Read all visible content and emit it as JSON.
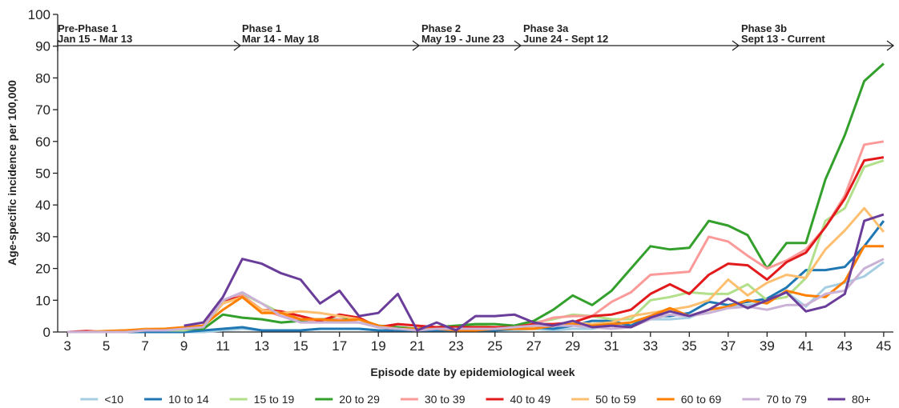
{
  "chart_data": {
    "type": "line",
    "x_label": "Episode date by epidemiological week",
    "y_label": "Age-specific incidence per 100,000",
    "annotations": [
      {
        "name": "Pre-Phase 1",
        "dates": "Jan 15 - Mar 13"
      },
      {
        "name": "Phase 1",
        "dates": "Mar 14 - May 18"
      },
      {
        "name": "Phase 2",
        "dates": "May 19 - June 23"
      },
      {
        "name": "Phase 3a",
        "dates": "June 24 - Sept 12"
      },
      {
        "name": "Phase 3b",
        "dates": "Sept 13 - Current"
      }
    ],
    "x": [
      3,
      4,
      5,
      6,
      7,
      8,
      9,
      10,
      11,
      12,
      13,
      14,
      15,
      16,
      17,
      18,
      19,
      20,
      21,
      22,
      23,
      24,
      25,
      26,
      27,
      28,
      29,
      30,
      31,
      32,
      33,
      34,
      35,
      36,
      37,
      38,
      39,
      40,
      41,
      42,
      43,
      44,
      45
    ],
    "xlim": [
      2.5,
      45.5
    ],
    "xticks": [
      3,
      5,
      7,
      9,
      11,
      13,
      15,
      17,
      19,
      21,
      23,
      25,
      27,
      29,
      31,
      33,
      35,
      37,
      39,
      41,
      43,
      45
    ],
    "ylim": [
      0,
      100
    ],
    "yticks": [
      0,
      10,
      20,
      30,
      40,
      50,
      60,
      70,
      80,
      90,
      100
    ],
    "series": [
      {
        "name": "<10",
        "color": "#a6cee3",
        "values": [
          0,
          0,
          0,
          0,
          0,
          0,
          0,
          0,
          0.5,
          1,
          0.5,
          0.5,
          0.5,
          1,
          1,
          1,
          0.5,
          0.5,
          0.5,
          0.5,
          0.5,
          0.5,
          0.5,
          0.5,
          1,
          0.5,
          1,
          1,
          2,
          2,
          4,
          4,
          4.5,
          7,
          8,
          8.5,
          9.5,
          12.5,
          8,
          14,
          15.5,
          17.5,
          22
        ]
      },
      {
        "name": "10 to 14",
        "color": "#1f78b4",
        "values": [
          0,
          0,
          0,
          0,
          0,
          0,
          0,
          0.5,
          1,
          1.5,
          0.5,
          0.5,
          0.5,
          1,
          1,
          1,
          0.5,
          0.5,
          0.5,
          0.5,
          0.5,
          0.5,
          0.5,
          1,
          1.5,
          1,
          2,
          3.5,
          3.5,
          2,
          5,
          5,
          6,
          9.5,
          8.5,
          9.5,
          10.5,
          14,
          19.5,
          19.5,
          20.5,
          27,
          35
        ]
      },
      {
        "name": "15 to 19",
        "color": "#b2df8a",
        "values": [
          0,
          0,
          0,
          0,
          0.5,
          0.5,
          0.5,
          1.5,
          9,
          12,
          9,
          6,
          4,
          4,
          3,
          3,
          1.5,
          1,
          1,
          1.5,
          2,
          2,
          1.5,
          1.5,
          3,
          4,
          5.5,
          5,
          4,
          4,
          10,
          11,
          12.5,
          12,
          12,
          15,
          10,
          11,
          17,
          35,
          39,
          52,
          54
        ]
      },
      {
        "name": "20 to 29",
        "color": "#33a02c",
        "values": [
          0,
          0,
          0,
          0.2,
          0.5,
          1,
          1,
          1,
          5.5,
          4.5,
          4,
          3,
          3.5,
          4,
          4,
          4,
          2,
          1.5,
          1,
          1.5,
          2,
          2.5,
          2.5,
          2,
          3.5,
          7,
          11.5,
          8.5,
          13,
          20,
          27,
          26,
          26.5,
          35,
          33.5,
          30.5,
          20,
          28,
          28,
          48,
          62,
          79,
          84.5
        ]
      },
      {
        "name": "30 to 39",
        "color": "#fb9a99",
        "values": [
          0,
          0,
          0,
          0.5,
          0.5,
          1,
          1,
          2,
          10,
          11.5,
          7,
          5,
          4,
          3.5,
          4,
          3,
          1.5,
          1,
          1,
          1,
          1,
          1,
          1,
          1.5,
          2.5,
          4.5,
          5,
          5,
          9.5,
          12.5,
          18,
          18.5,
          19,
          30,
          28.5,
          24,
          20,
          22.5,
          26,
          33,
          43,
          59,
          60
        ]
      },
      {
        "name": "40 to 49",
        "color": "#e31a1c",
        "values": [
          0,
          0.3,
          0,
          0.3,
          0.5,
          1,
          1,
          2,
          10,
          11,
          7,
          6.5,
          5,
          3.5,
          5.5,
          4.5,
          1.5,
          2.5,
          2,
          1.5,
          1.5,
          1.5,
          1.5,
          1.5,
          2.5,
          2.5,
          3,
          5,
          5.5,
          7,
          12,
          15,
          12,
          18,
          21.5,
          21,
          16.5,
          22,
          25,
          33,
          42,
          54,
          55
        ]
      },
      {
        "name": "50 to 59",
        "color": "#fdbf6f",
        "values": [
          0,
          0,
          0.3,
          0.5,
          1,
          1,
          1,
          2,
          9,
          11,
          7,
          6,
          6.5,
          6,
          5,
          4,
          1.5,
          1,
          1,
          1,
          1,
          1,
          1,
          1,
          1.5,
          2,
          3,
          2.5,
          3,
          5,
          6,
          7,
          8,
          10,
          16.5,
          11.5,
          15.5,
          18,
          17,
          26,
          32,
          39,
          31.5
        ]
      },
      {
        "name": "60 to 69",
        "color": "#ff7f00",
        "values": [
          0,
          0,
          0.3,
          0.5,
          0.8,
          1,
          1.5,
          2,
          7,
          11,
          6,
          6,
          4,
          4,
          3.5,
          4,
          2,
          1,
          1,
          1,
          0.5,
          0.5,
          1,
          1,
          1,
          2,
          2.5,
          2,
          2.5,
          3,
          5,
          7.5,
          5,
          7,
          8,
          10,
          9,
          13,
          11.5,
          11,
          16,
          27,
          27
        ]
      },
      {
        "name": "70 to 79",
        "color": "#cab2d6",
        "values": [
          0,
          0,
          0,
          0,
          0.5,
          0.5,
          1,
          1.5,
          10,
          12.5,
          9,
          5,
          3,
          3,
          3,
          3,
          1.5,
          1,
          0.5,
          1,
          1,
          1,
          1,
          1.5,
          2,
          2,
          2,
          1.5,
          1,
          1.5,
          4,
          5.5,
          5,
          6,
          7.5,
          8,
          7,
          8.5,
          8.5,
          12,
          13,
          20,
          23
        ]
      },
      {
        "name": "80+",
        "color": "#6a3d9a",
        "values": [
          null,
          null,
          null,
          null,
          null,
          null,
          2,
          3,
          11,
          23,
          21.5,
          18.5,
          16.5,
          9,
          13,
          5,
          6,
          12,
          0.5,
          3,
          0.5,
          5,
          5,
          5.5,
          3,
          2,
          3.5,
          1.5,
          2,
          1.5,
          4.5,
          6.5,
          5,
          7,
          10.5,
          7.5,
          10,
          12.5,
          6.5,
          8,
          12,
          35,
          37
        ]
      }
    ]
  }
}
